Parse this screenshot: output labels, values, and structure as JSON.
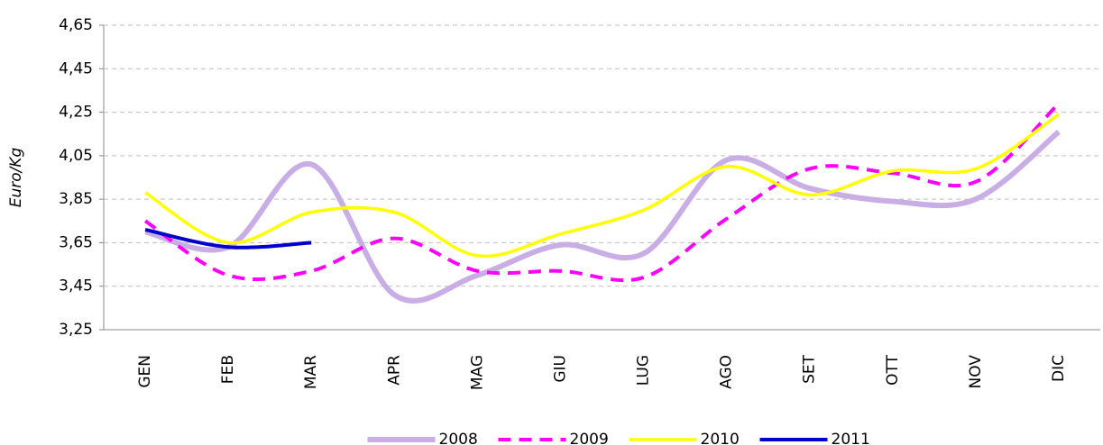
{
  "chart_data": {
    "type": "line",
    "y_label": "Euro/Kg",
    "categories": [
      "GEN",
      "FEB",
      "MAR",
      "APR",
      "MAG",
      "GIU",
      "LUG",
      "AGO",
      "SET",
      "OTT",
      "NOV",
      "DIC"
    ],
    "series": [
      {
        "name": "2008",
        "color": "#c9aee6",
        "values": [
          3.7,
          3.63,
          4.01,
          3.41,
          3.5,
          3.64,
          3.6,
          4.03,
          3.9,
          3.84,
          3.85,
          4.16
        ]
      },
      {
        "name": "2009",
        "color": "#ff00ff",
        "values": [
          3.75,
          3.5,
          3.52,
          3.67,
          3.52,
          3.52,
          3.49,
          3.76,
          3.99,
          3.97,
          3.93,
          4.29
        ]
      },
      {
        "name": "2010",
        "color": "#ffff00",
        "values": [
          3.88,
          3.65,
          3.79,
          3.79,
          3.59,
          3.69,
          3.8,
          4.0,
          3.87,
          3.98,
          3.99,
          4.24
        ]
      },
      {
        "name": "2011",
        "color": "#0000cc",
        "values": [
          3.71,
          3.63,
          3.65,
          null,
          null,
          null,
          null,
          null,
          null,
          null,
          null,
          null
        ]
      }
    ],
    "ylim": [
      3.25,
      4.65
    ],
    "yticks": [
      {
        "value": 3.25,
        "label": "3,25"
      },
      {
        "value": 3.45,
        "label": "3,45"
      },
      {
        "value": 3.65,
        "label": "3,65"
      },
      {
        "value": 3.85,
        "label": "3,85"
      },
      {
        "value": 4.05,
        "label": "4,05"
      },
      {
        "value": 4.25,
        "label": "4,25"
      },
      {
        "value": 4.45,
        "label": "4,45"
      },
      {
        "value": 4.65,
        "label": "4,65"
      }
    ],
    "grid": true,
    "legend": "bottom"
  }
}
